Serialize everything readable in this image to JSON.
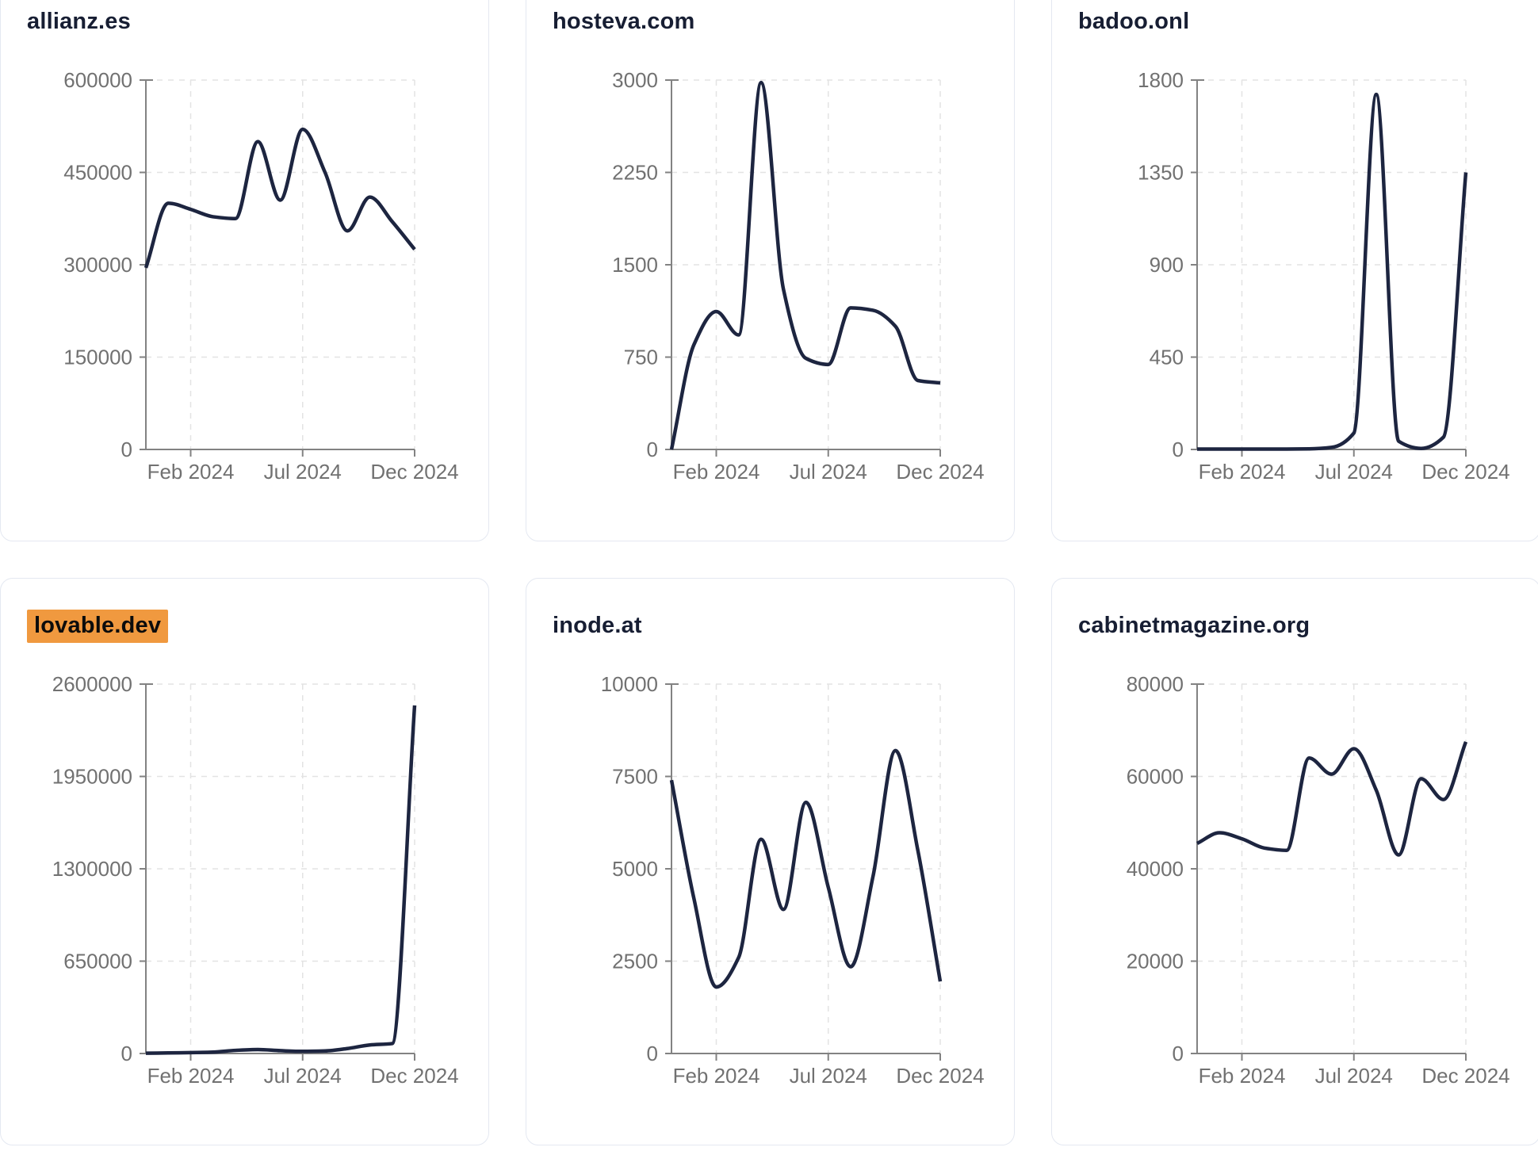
{
  "colors": {
    "line": "#1d2540",
    "title": "#171e33",
    "tick_label": "#717171",
    "axis": "#828282",
    "grid": "#e3e3e3",
    "card_border": "#e4e8f1",
    "card_bg": "#ffffff",
    "page_bg": "#ffffff",
    "highlight_bg": "#f0993f",
    "highlight_text": "#0c0c0c"
  },
  "x_axis": {
    "tick_labels": [
      "Feb 2024",
      "Jul 2024",
      "Dec 2024"
    ],
    "tick_indices": [
      2,
      7,
      12
    ]
  },
  "chart_data": [
    {
      "type": "line",
      "title": "allianz.es",
      "highlighted": false,
      "y_ticks": [
        0,
        150000,
        300000,
        450000,
        600000
      ],
      "y_max": 600000,
      "x": [
        "2023-12",
        "2024-01",
        "2024-02",
        "2024-03",
        "2024-04",
        "2024-05",
        "2024-06",
        "2024-07",
        "2024-08",
        "2024-09",
        "2024-10",
        "2024-11",
        "2024-12"
      ],
      "values": [
        295000,
        400000,
        390000,
        378000,
        375000,
        500000,
        405000,
        520000,
        450000,
        355000,
        410000,
        370000,
        325000
      ]
    },
    {
      "type": "line",
      "title": "hosteva.com",
      "highlighted": false,
      "y_ticks": [
        0,
        750,
        1500,
        2250,
        3000
      ],
      "y_max": 3000,
      "x": [
        "2023-12",
        "2024-01",
        "2024-02",
        "2024-03",
        "2024-04",
        "2024-05",
        "2024-06",
        "2024-07",
        "2024-08",
        "2024-09",
        "2024-10",
        "2024-11",
        "2024-12"
      ],
      "values": [
        0,
        850,
        1120,
        930,
        2980,
        1300,
        740,
        690,
        1150,
        1130,
        1000,
        560,
        540
      ]
    },
    {
      "type": "line",
      "title": "badoo.onl",
      "highlighted": false,
      "y_ticks": [
        0,
        450,
        900,
        1350,
        1800
      ],
      "y_max": 1800,
      "x": [
        "2023-12",
        "2024-01",
        "2024-02",
        "2024-03",
        "2024-04",
        "2024-05",
        "2024-06",
        "2024-07",
        "2024-08",
        "2024-09",
        "2024-10",
        "2024-11",
        "2024-12"
      ],
      "values": [
        2,
        2,
        2,
        2,
        2,
        3,
        10,
        80,
        1730,
        40,
        5,
        60,
        1350
      ]
    },
    {
      "type": "line",
      "title": "lovable.dev",
      "highlighted": true,
      "y_ticks": [
        0,
        650000,
        1300000,
        1950000,
        2600000
      ],
      "y_max": 2600000,
      "x": [
        "2023-12",
        "2024-01",
        "2024-02",
        "2024-03",
        "2024-04",
        "2024-05",
        "2024-06",
        "2024-07",
        "2024-08",
        "2024-09",
        "2024-10",
        "2024-11",
        "2024-12"
      ],
      "values": [
        2000,
        4000,
        6000,
        10000,
        22000,
        28000,
        20000,
        15000,
        18000,
        35000,
        60000,
        70000,
        2450000
      ]
    },
    {
      "type": "line",
      "title": "inode.at",
      "highlighted": false,
      "y_ticks": [
        0,
        2500,
        5000,
        7500,
        10000
      ],
      "y_max": 10000,
      "x": [
        "2023-12",
        "2024-01",
        "2024-02",
        "2024-03",
        "2024-04",
        "2024-05",
        "2024-06",
        "2024-07",
        "2024-08",
        "2024-09",
        "2024-10",
        "2024-11",
        "2024-12"
      ],
      "values": [
        7400,
        4200,
        1800,
        2600,
        5800,
        3900,
        6800,
        4500,
        2350,
        4800,
        8200,
        5500,
        1950
      ]
    },
    {
      "type": "line",
      "title": "cabinetmagazine.org",
      "highlighted": false,
      "y_ticks": [
        0,
        20000,
        40000,
        60000,
        80000
      ],
      "y_max": 80000,
      "x": [
        "2023-12",
        "2024-01",
        "2024-02",
        "2024-03",
        "2024-04",
        "2024-05",
        "2024-06",
        "2024-07",
        "2024-08",
        "2024-09",
        "2024-10",
        "2024-11",
        "2024-12"
      ],
      "values": [
        45500,
        47800,
        46500,
        44500,
        44000,
        64000,
        60500,
        66000,
        57000,
        43000,
        59500,
        55000,
        67500
      ]
    }
  ]
}
